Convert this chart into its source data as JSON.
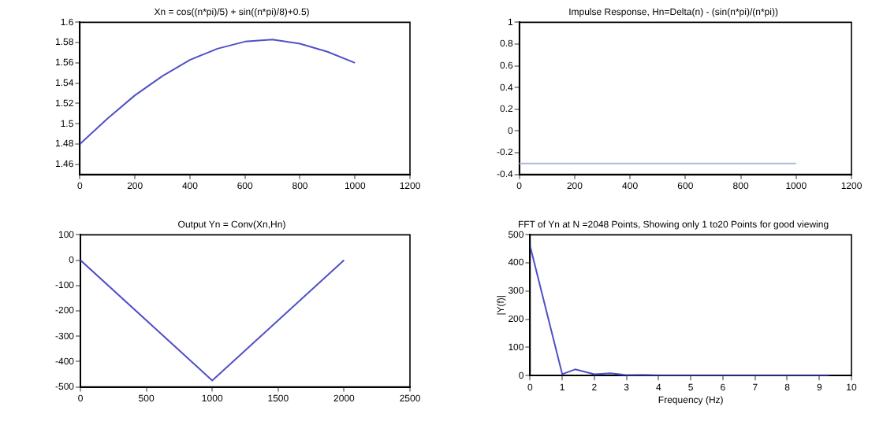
{
  "chart_data": [
    {
      "type": "line",
      "title": "Xn = cos((n*pi)/5) + sin((n*pi)/8)+0.5)",
      "x": [
        0,
        100,
        200,
        300,
        400,
        500,
        600,
        700,
        800,
        900,
        1000
      ],
      "series": [
        {
          "color": "#5050c8",
          "values": [
            1.48,
            1.505,
            1.528,
            1.547,
            1.563,
            1.574,
            1.581,
            1.583,
            1.579,
            1.571,
            1.56
          ]
        }
      ],
      "xlim": [
        0,
        1200
      ],
      "xticks": [
        0,
        200,
        400,
        600,
        800,
        1000,
        1200
      ],
      "ylim": [
        1.45,
        1.6
      ],
      "yticks": [
        1.46,
        1.48,
        1.5,
        1.52,
        1.54,
        1.56,
        1.58,
        1.6
      ],
      "grid": false,
      "legend": false,
      "marker": "none",
      "line_style": "solid"
    },
    {
      "type": "line",
      "title": "Impulse Response, Hn=Delta(n) - (sin(n*pi)/(n*pi))",
      "x": [
        0,
        1000
      ],
      "series": [
        {
          "color": "#b0b8e0",
          "values": [
            -0.3,
            -0.3
          ]
        }
      ],
      "xlim": [
        0,
        1200
      ],
      "xticks": [
        0,
        200,
        400,
        600,
        800,
        1000,
        1200
      ],
      "ylim": [
        -0.4,
        1
      ],
      "yticks": [
        -0.4,
        -0.2,
        0,
        0.2,
        0.4,
        0.6,
        0.8,
        1
      ],
      "grid": false,
      "legend": false,
      "marker": "none",
      "line_style": "solid"
    },
    {
      "type": "line",
      "title": "Output Yn = Conv(Xn,Hn)",
      "x": [
        0,
        1000,
        2000
      ],
      "series": [
        {
          "color": "#5050c8",
          "values": [
            0,
            -475,
            0
          ]
        }
      ],
      "xlim": [
        0,
        2500
      ],
      "xticks": [
        0,
        500,
        1000,
        1500,
        2000,
        2500
      ],
      "ylim": [
        -500,
        100
      ],
      "yticks": [
        -500,
        -400,
        -300,
        -200,
        -100,
        0,
        100
      ],
      "grid": false,
      "legend": false,
      "marker": "none",
      "line_style": "solid"
    },
    {
      "type": "line",
      "title": "FFT of Yn at N =2048 Points, Showing only 1 to20 Points for good viewing",
      "xlabel": "Frequency (Hz)",
      "ylabel": "|Y(f)|",
      "x": [
        0,
        1,
        1.4,
        2,
        2.5,
        3,
        3.5,
        4,
        5,
        6,
        7,
        8,
        9,
        9.3
      ],
      "series": [
        {
          "color": "#5050c8",
          "values": [
            460,
            5,
            22,
            5,
            8,
            2,
            3,
            1,
            1,
            1,
            1,
            1,
            1,
            1
          ]
        }
      ],
      "xlim": [
        0,
        10
      ],
      "xticks": [
        0,
        1,
        2,
        3,
        4,
        5,
        6,
        7,
        8,
        9,
        10
      ],
      "ylim": [
        0,
        500
      ],
      "yticks": [
        0,
        100,
        200,
        300,
        400,
        500
      ],
      "grid": false,
      "legend": false,
      "marker": "none",
      "line_style": "solid"
    }
  ]
}
